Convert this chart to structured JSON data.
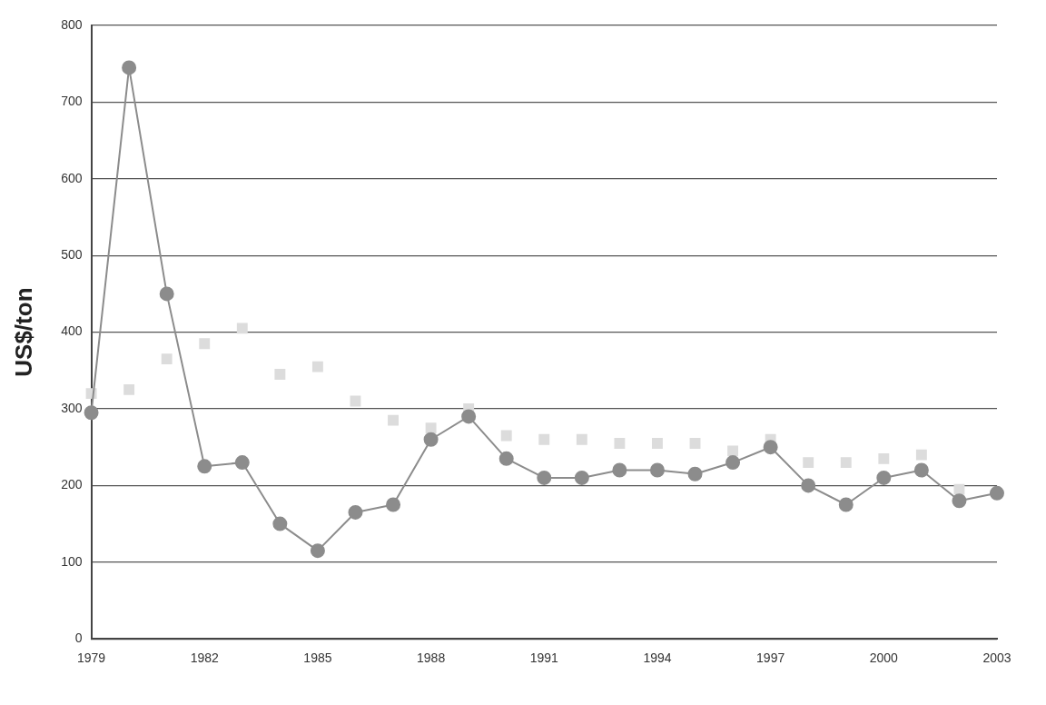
{
  "chart_data": {
    "type": "line",
    "ylabel": "US$/ton",
    "categories": [
      "1979",
      null,
      null,
      "1982",
      null,
      null,
      "1985",
      null,
      null,
      "1988",
      null,
      null,
      "1991",
      null,
      null,
      "1994",
      null,
      null,
      "1997",
      null,
      null,
      "2000",
      null,
      null,
      "2003"
    ],
    "ylim": [
      0,
      800
    ],
    "yticks": [
      0,
      100,
      200,
      300,
      400,
      500,
      600,
      700,
      800
    ],
    "grid": "y",
    "legend": false,
    "series": [
      {
        "type": "scatter",
        "marker": "square",
        "color": "#dcdcdc",
        "values": [
          320,
          325,
          365,
          385,
          405,
          345,
          355,
          310,
          285,
          275,
          300,
          265,
          260,
          260,
          255,
          255,
          255,
          245,
          260,
          230,
          230,
          235,
          240,
          195,
          null
        ]
      },
      {
        "type": "line",
        "marker": "circle",
        "color": "#8c8c8c",
        "values": [
          295,
          745,
          450,
          225,
          230,
          150,
          115,
          165,
          175,
          260,
          290,
          235,
          210,
          210,
          220,
          220,
          215,
          230,
          250,
          200,
          175,
          210,
          220,
          180,
          190
        ]
      }
    ]
  }
}
